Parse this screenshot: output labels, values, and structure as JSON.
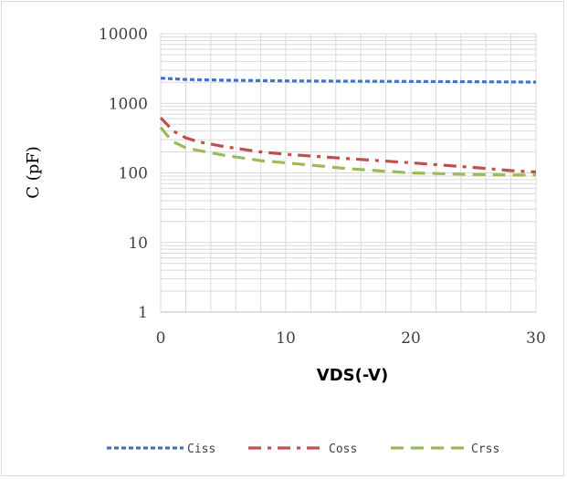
{
  "chart_data": {
    "type": "line",
    "xlabel": "VDS(-V)",
    "ylabel": "C (pF)",
    "x_scale": "linear",
    "y_scale": "log",
    "xlim": [
      0,
      30
    ],
    "ylim": [
      1,
      10000
    ],
    "x_ticks": [
      "0",
      "10",
      "20",
      "30"
    ],
    "y_ticks": [
      "1",
      "10",
      "100",
      "1000",
      "10000"
    ],
    "grid": true,
    "legend_position": "bottom",
    "series": [
      {
        "name": "Ciss",
        "color": "#4472C4",
        "dash": "dashed",
        "x": [
          0,
          1,
          2,
          5,
          10,
          15,
          20,
          25,
          30
        ],
        "y": [
          2300,
          2250,
          2200,
          2150,
          2100,
          2080,
          2060,
          2040,
          2020
        ]
      },
      {
        "name": "Coss",
        "color": "#C0504D",
        "dash": "dash-dot",
        "x": [
          0,
          0.5,
          1,
          2,
          3,
          5,
          8,
          10,
          15,
          20,
          25,
          28,
          30
        ],
        "y": [
          620,
          500,
          400,
          320,
          280,
          240,
          200,
          185,
          160,
          140,
          120,
          108,
          103
        ]
      },
      {
        "name": "Crss",
        "color": "#9BBB59",
        "dash": "long-dashed",
        "x": [
          0,
          0.5,
          1,
          2,
          3,
          5,
          8,
          10,
          15,
          20,
          25,
          28,
          30
        ],
        "y": [
          450,
          350,
          280,
          230,
          210,
          180,
          150,
          140,
          115,
          100,
          95,
          93,
          93
        ]
      }
    ]
  }
}
